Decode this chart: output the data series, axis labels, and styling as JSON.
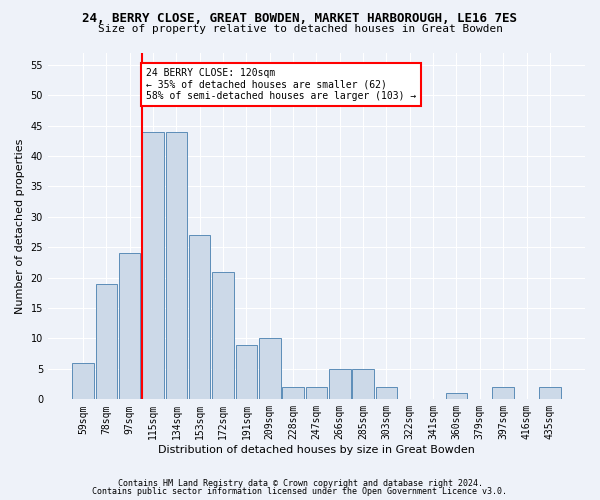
{
  "title": "24, BERRY CLOSE, GREAT BOWDEN, MARKET HARBOROUGH, LE16 7ES",
  "subtitle": "Size of property relative to detached houses in Great Bowden",
  "xlabel": "Distribution of detached houses by size in Great Bowden",
  "ylabel": "Number of detached properties",
  "footnote1": "Contains HM Land Registry data © Crown copyright and database right 2024.",
  "footnote2": "Contains public sector information licensed under the Open Government Licence v3.0.",
  "bin_labels": [
    "59sqm",
    "78sqm",
    "97sqm",
    "115sqm",
    "134sqm",
    "153sqm",
    "172sqm",
    "191sqm",
    "209sqm",
    "228sqm",
    "247sqm",
    "266sqm",
    "285sqm",
    "303sqm",
    "322sqm",
    "341sqm",
    "360sqm",
    "379sqm",
    "397sqm",
    "416sqm",
    "435sqm"
  ],
  "bar_heights": [
    6,
    19,
    24,
    44,
    44,
    27,
    21,
    9,
    10,
    2,
    2,
    5,
    5,
    2,
    0,
    0,
    1,
    0,
    2,
    0,
    2
  ],
  "bar_color": "#ccd9e8",
  "bar_edge_color": "#5b8db8",
  "vline_color": "red",
  "vline_index": 2.53,
  "ylim": [
    0,
    57
  ],
  "yticks": [
    0,
    5,
    10,
    15,
    20,
    25,
    30,
    35,
    40,
    45,
    50,
    55
  ],
  "annotation_text": "24 BERRY CLOSE: 120sqm\n← 35% of detached houses are smaller (62)\n58% of semi-detached houses are larger (103) →",
  "annotation_box_facecolor": "white",
  "annotation_box_edgecolor": "red",
  "bg_color": "#eef2f9",
  "grid_color": "white",
  "title_fontsize": 9,
  "subtitle_fontsize": 8,
  "xlabel_fontsize": 8,
  "ylabel_fontsize": 8,
  "tick_fontsize": 7,
  "annot_fontsize": 7,
  "footnote_fontsize": 6
}
